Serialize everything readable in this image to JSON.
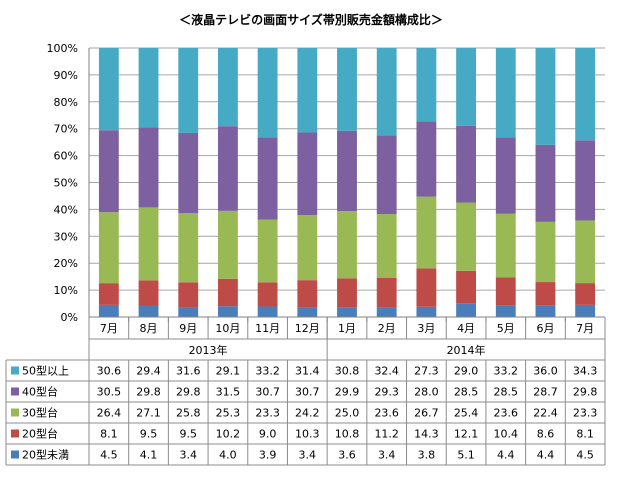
{
  "chart_data": {
    "type": "bar",
    "stacking": "percent",
    "title": "＜液晶テレビの画面サイズ帯別販売金額構成比＞",
    "categories": [
      "7月",
      "8月",
      "9月",
      "10月",
      "11月",
      "12月",
      "1月",
      "2月",
      "3月",
      "4月",
      "5月",
      "6月",
      "7月"
    ],
    "year_groups": [
      {
        "label": "2013年",
        "start": 0,
        "end": 5
      },
      {
        "label": "2014年",
        "start": 6,
        "end": 12
      }
    ],
    "y_ticks": [
      "0%",
      "10%",
      "20%",
      "30%",
      "40%",
      "50%",
      "60%",
      "70%",
      "80%",
      "90%",
      "100%"
    ],
    "ylim": [
      0,
      100
    ],
    "grid": true,
    "legend_placement": "table-left",
    "series": [
      {
        "name": "20型未満",
        "color": "#4a7ebb",
        "values": [
          4.5,
          4.1,
          3.4,
          4.0,
          3.9,
          3.4,
          3.6,
          3.4,
          3.8,
          5.1,
          4.4,
          4.4,
          4.5
        ]
      },
      {
        "name": "20型台",
        "color": "#be4b48",
        "values": [
          8.1,
          9.5,
          9.5,
          10.2,
          9.0,
          10.3,
          10.8,
          11.2,
          14.3,
          12.1,
          10.4,
          8.6,
          8.1
        ]
      },
      {
        "name": "30型台",
        "color": "#98b954",
        "values": [
          26.4,
          27.1,
          25.8,
          25.3,
          23.3,
          24.2,
          25.0,
          23.6,
          26.7,
          25.4,
          23.6,
          22.4,
          23.3
        ]
      },
      {
        "name": "40型台",
        "color": "#7d60a0",
        "values": [
          30.5,
          29.8,
          29.8,
          31.5,
          30.7,
          30.7,
          29.9,
          29.3,
          28.0,
          28.5,
          28.5,
          28.7,
          29.8
        ]
      },
      {
        "name": "50型以上",
        "color": "#46aac5",
        "values": [
          30.6,
          29.4,
          31.6,
          29.1,
          33.2,
          31.4,
          30.8,
          32.4,
          27.3,
          29.0,
          33.2,
          36.0,
          34.3
        ]
      }
    ],
    "table_row_order": [
      "50型以上",
      "40型台",
      "30型台",
      "20型台",
      "20型未満"
    ]
  }
}
